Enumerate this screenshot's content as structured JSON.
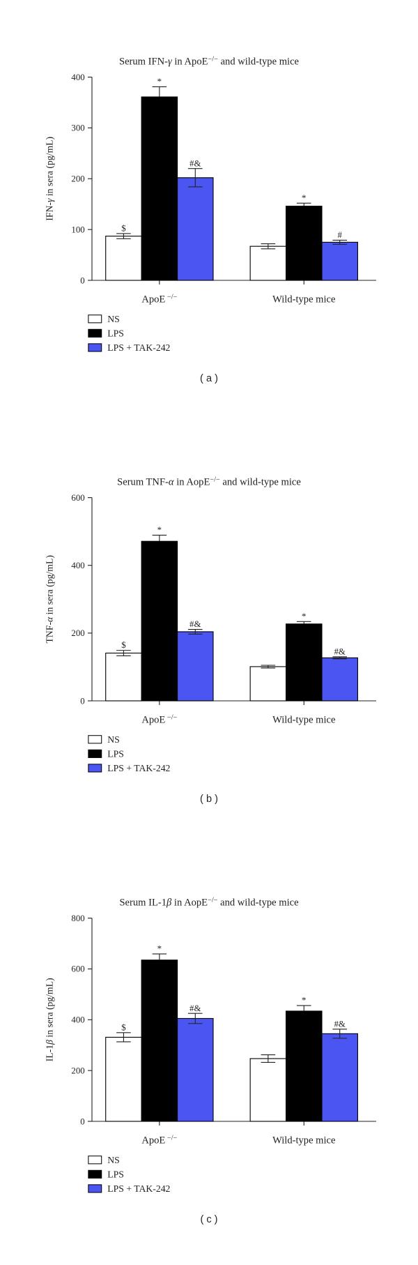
{
  "legend": [
    {
      "label": "NS",
      "color": "#ffffff"
    },
    {
      "label": "LPS",
      "color": "#000000"
    },
    {
      "label": "LPS + TAK-242",
      "color": "#4b55f2"
    }
  ],
  "chart_data": [
    {
      "type": "bar",
      "panel_label": "( a )",
      "title_pre": "Serum IFN-",
      "title_greek": "γ",
      "title_post": " in ApoE",
      "title_sup": "−/−",
      "title_end": " and wild-type mice",
      "ylabel_pre": "IFN-",
      "ylabel_greek": "γ",
      "ylabel_post": " in sera (pg/mL)",
      "ylim": [
        0,
        400
      ],
      "yticks": [
        0,
        100,
        200,
        300,
        400
      ],
      "categories": [
        {
          "label": "ApoE",
          "sup": " −/−"
        },
        {
          "label": "Wild-type mice",
          "sup": ""
        }
      ],
      "series": [
        {
          "name": "NS",
          "values": [
            87,
            67
          ],
          "errors": [
            5,
            5
          ],
          "annotations": [
            "$",
            ""
          ]
        },
        {
          "name": "LPS",
          "values": [
            361,
            146
          ],
          "errors": [
            20,
            6
          ],
          "annotations": [
            "*",
            "*"
          ]
        },
        {
          "name": "LPS + TAK-242",
          "values": [
            202,
            75
          ],
          "errors": [
            18,
            4
          ],
          "annotations": [
            "#&",
            "#"
          ]
        }
      ]
    },
    {
      "type": "bar",
      "panel_label": "( b )",
      "title_pre": "Serum TNF-",
      "title_greek": "α",
      "title_post": " in AopE",
      "title_sup": "−/−",
      "title_end": " and wild-type mice",
      "ylabel_pre": "TNF-",
      "ylabel_greek": "α",
      "ylabel_post": " in sera (pg/mL)",
      "ylim": [
        0,
        600
      ],
      "yticks": [
        0,
        200,
        400,
        600
      ],
      "categories": [
        {
          "label": "ApoE",
          "sup": " −/−"
        },
        {
          "label": "Wild-type mice",
          "sup": ""
        }
      ],
      "series": [
        {
          "name": "NS",
          "values": [
            141,
            101
          ],
          "errors": [
            8,
            4
          ],
          "annotations": [
            "$",
            ""
          ]
        },
        {
          "name": "LPS",
          "values": [
            471,
            227
          ],
          "errors": [
            18,
            7
          ],
          "annotations": [
            "*",
            "*"
          ]
        },
        {
          "name": "LPS + TAK-242",
          "values": [
            204,
            127
          ],
          "errors": [
            7,
            3
          ],
          "annotations": [
            "#&",
            "#&"
          ]
        }
      ]
    },
    {
      "type": "bar",
      "panel_label": "( c )",
      "title_pre": "Serum IL-1",
      "title_greek": "β",
      "title_post": " in AopE",
      "title_sup": "−/−",
      "title_end": " and wild-type mice",
      "ylabel_pre": "IL-1",
      "ylabel_greek": "β",
      "ylabel_post": " in sera (pg/mL)",
      "ylim": [
        0,
        800
      ],
      "yticks": [
        0,
        200,
        400,
        600,
        800
      ],
      "categories": [
        {
          "label": "ApoE",
          "sup": " −/−"
        },
        {
          "label": "Wild-type mice",
          "sup": ""
        }
      ],
      "series": [
        {
          "name": "NS",
          "values": [
            331,
            247
          ],
          "errors": [
            18,
            15
          ],
          "annotations": [
            "$",
            ""
          ]
        },
        {
          "name": "LPS",
          "values": [
            635,
            434
          ],
          "errors": [
            24,
            22
          ],
          "annotations": [
            "*",
            "*"
          ]
        },
        {
          "name": "LPS + TAK-242",
          "values": [
            405,
            345
          ],
          "errors": [
            20,
            18
          ],
          "annotations": [
            "#&",
            "#&"
          ]
        }
      ]
    }
  ]
}
